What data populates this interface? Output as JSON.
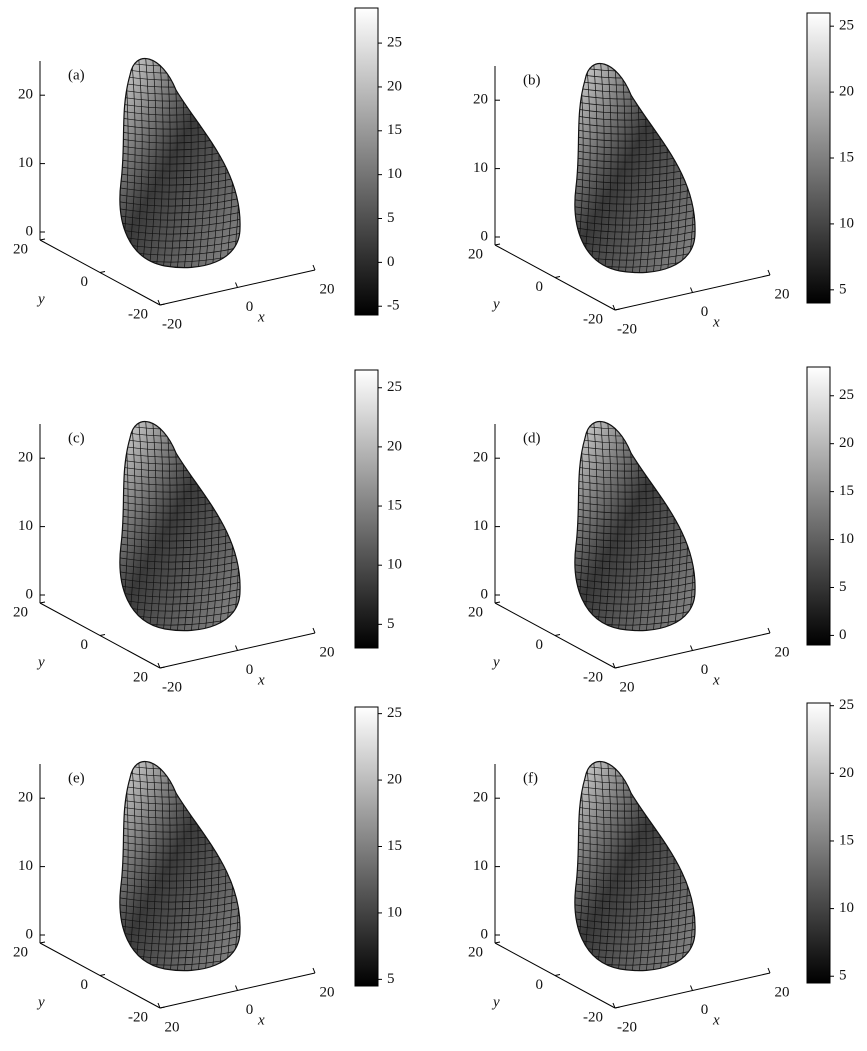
{
  "chart_data": [
    {
      "type": "surface3d",
      "label": "(a)",
      "xlabel": "x",
      "ylabel": "y",
      "zlim": [
        0,
        25
      ],
      "zticks": [
        0,
        10,
        20
      ],
      "xticks": [
        -20,
        0,
        20
      ],
      "yticks": [
        20,
        0,
        -20
      ],
      "colorbar": {
        "lim": [
          -6,
          29
        ],
        "ticks": [
          -5,
          0,
          5,
          10,
          15,
          20,
          25
        ]
      }
    },
    {
      "type": "surface3d",
      "label": "(b)",
      "xlabel": "x",
      "ylabel": "y",
      "zlim": [
        0,
        25
      ],
      "zticks": [
        0,
        10,
        20
      ],
      "xticks": [
        -20,
        0,
        20
      ],
      "yticks": [
        20,
        0,
        -20
      ],
      "colorbar": {
        "lim": [
          4,
          26
        ],
        "ticks": [
          5,
          10,
          15,
          20,
          25
        ]
      }
    },
    {
      "type": "surface3d",
      "label": "(c)",
      "xlabel": "x",
      "ylabel": "y",
      "zlim": [
        0,
        25
      ],
      "zticks": [
        0,
        10,
        20
      ],
      "xticks": [
        -20,
        0,
        20
      ],
      "yticks": [
        20,
        0,
        20
      ],
      "colorbar": {
        "lim": [
          3,
          26.5
        ],
        "ticks": [
          5,
          10,
          15,
          20,
          25
        ]
      }
    },
    {
      "type": "surface3d",
      "label": "(d)",
      "xlabel": "x",
      "ylabel": "y",
      "zlim": [
        0,
        25
      ],
      "zticks": [
        0,
        10,
        20
      ],
      "xticks": [
        20,
        0,
        20
      ],
      "yticks": [
        20,
        0,
        -20
      ],
      "colorbar": {
        "lim": [
          -1,
          28
        ],
        "ticks": [
          0,
          5,
          10,
          15,
          20,
          25
        ]
      }
    },
    {
      "type": "surface3d",
      "label": "(e)",
      "xlabel": "x",
      "ylabel": "y",
      "zlim": [
        0,
        25
      ],
      "zticks": [
        0,
        10,
        20
      ],
      "xticks": [
        20,
        0,
        20
      ],
      "yticks": [
        20,
        0,
        -20
      ],
      "colorbar": {
        "lim": [
          4.5,
          25.5
        ],
        "ticks": [
          5,
          10,
          15,
          20,
          25
        ]
      }
    },
    {
      "type": "surface3d",
      "label": "(f)",
      "xlabel": "x",
      "ylabel": "y",
      "zlim": [
        0,
        25
      ],
      "zticks": [
        0,
        10,
        20
      ],
      "xticks": [
        -20,
        0,
        20
      ],
      "yticks": [
        20,
        0,
        -20
      ],
      "colorbar": {
        "lim": [
          4.5,
          25.2
        ],
        "ticks": [
          5,
          10,
          15,
          20,
          25
        ]
      }
    }
  ]
}
